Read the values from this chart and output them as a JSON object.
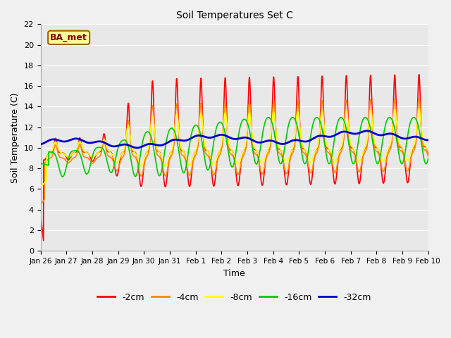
{
  "title": "Soil Temperatures Set C",
  "xlabel": "Time",
  "ylabel": "Soil Temperature (C)",
  "ylim": [
    0,
    22
  ],
  "yticks": [
    0,
    2,
    4,
    6,
    8,
    10,
    12,
    14,
    16,
    18,
    20,
    22
  ],
  "xtick_labels": [
    "Jan 26",
    "Jan 27",
    "Jan 28",
    "Jan 29",
    "Jan 30",
    "Jan 31",
    "Feb 1",
    "Feb 2",
    "Feb 3",
    "Feb 4",
    "Feb 5",
    "Feb 6",
    "Feb 7",
    "Feb 8",
    "Feb 9",
    "Feb 10"
  ],
  "series_colors": [
    "#ff0000",
    "#ff8800",
    "#ffff00",
    "#00cc00",
    "#0000cc"
  ],
  "series_labels": [
    "-2cm",
    "-4cm",
    "-8cm",
    "-16cm",
    "-32cm"
  ],
  "series_widths": [
    1.2,
    1.2,
    1.2,
    1.2,
    2.0
  ],
  "annotation_text": "BA_met",
  "annotation_bg": "#ffff99",
  "annotation_border": "#996600",
  "fig_bg": "#f0f0f0",
  "ax_bg": "#e8e8e8",
  "figsize": [
    6.4,
    4.8
  ],
  "dpi": 100
}
